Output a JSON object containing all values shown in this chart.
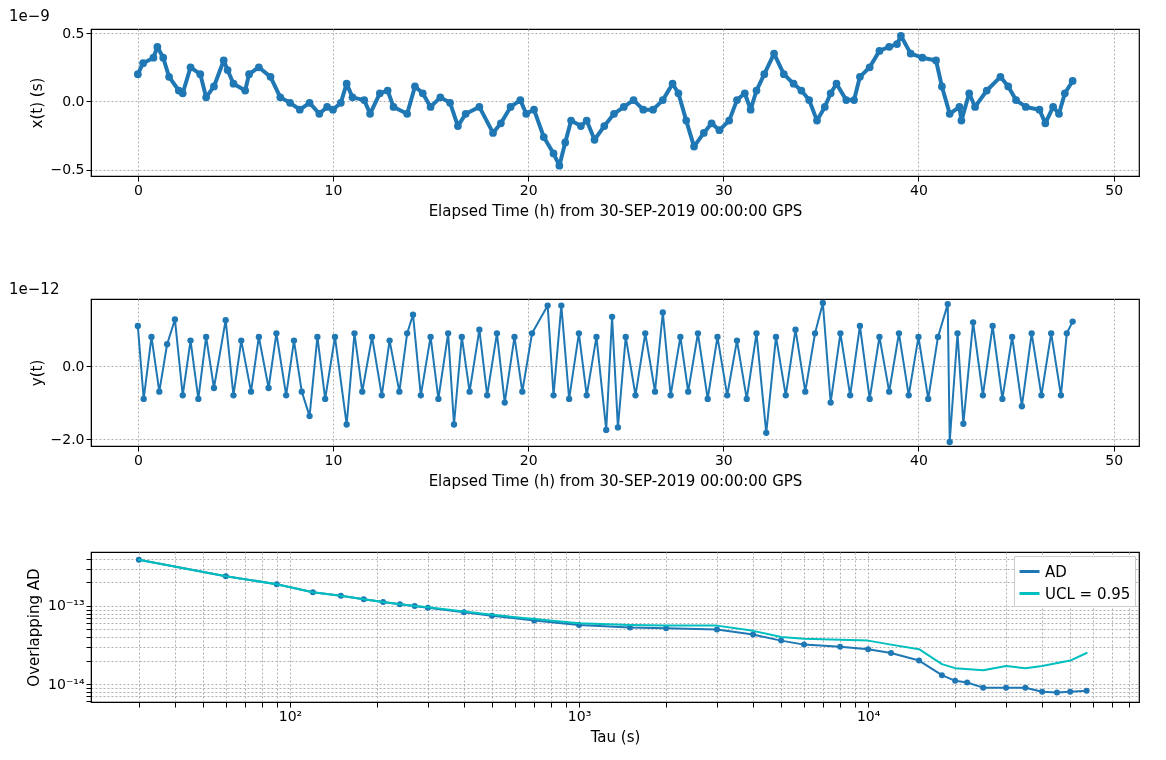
{
  "chart_data": [
    {
      "type": "line",
      "xlabel": "Elapsed Time (h) from 30-SEP-2019 00:00:00 GPS",
      "ylabel": "x(t) (s)",
      "annotations": [
        "1e−9"
      ],
      "xlim": [
        -2.4,
        51.3
      ],
      "ylim": [
        -0.545,
        0.53
      ],
      "xticks": [
        0,
        10,
        20,
        30,
        40,
        50
      ],
      "yticks": [
        {
          "value": -0.5,
          "label": "−0.5"
        },
        {
          "value": 0,
          "label": "0.0"
        },
        {
          "value": 0.5,
          "label": "0.5"
        }
      ],
      "grid": true,
      "marker": "circle",
      "series": [
        {
          "color": "#1f77b4",
          "x": [
            0,
            0.27,
            0.8,
            1.0,
            1.3,
            1.6,
            2.1,
            2.3,
            2.7,
            3.2,
            3.5,
            3.9,
            4.4,
            4.6,
            4.9,
            5.5,
            5.7,
            6.2,
            6.8,
            7.3,
            7.8,
            8.3,
            8.8,
            9.3,
            9.7,
            10.0,
            10.4,
            10.7,
            11.0,
            11.6,
            11.9,
            12.4,
            12.8,
            13.1,
            13.8,
            14.2,
            14.6,
            15.0,
            15.5,
            16.0,
            16.4,
            16.8,
            17.5,
            18.2,
            18.6,
            19.1,
            19.6,
            19.9,
            20.3,
            20.8,
            21.3,
            21.6,
            21.9,
            22.2,
            22.7,
            23.0,
            23.4,
            23.9,
            24.4,
            24.9,
            25.4,
            25.9,
            26.4,
            26.9,
            27.4,
            27.7,
            28.1,
            28.5,
            29.0,
            29.4,
            29.8,
            30.3,
            30.7,
            31.1,
            31.4,
            31.7,
            32.1,
            32.6,
            33.1,
            33.6,
            34.0,
            34.4,
            34.8,
            35.2,
            35.5,
            35.8,
            36.3,
            36.7,
            37.0,
            37.5,
            38.0,
            38.5,
            38.9,
            39.1,
            39.6,
            40.2,
            40.9,
            41.2,
            41.6,
            42.1,
            42.2,
            42.6,
            42.9,
            43.5,
            44.2,
            44.6,
            45.0,
            45.5,
            46.2,
            46.5,
            46.9,
            47.2,
            47.5,
            47.9
          ],
          "values": [
            0.2,
            0.28,
            0.32,
            0.4,
            0.32,
            0.18,
            0.08,
            0.06,
            0.25,
            0.2,
            0.03,
            0.11,
            0.3,
            0.23,
            0.13,
            0.08,
            0.2,
            0.25,
            0.18,
            0.03,
            -0.01,
            -0.06,
            -0.01,
            -0.09,
            -0.04,
            -0.06,
            -0.01,
            0.13,
            0.03,
            0.01,
            -0.09,
            0.06,
            0.08,
            -0.04,
            -0.09,
            0.11,
            0.06,
            -0.04,
            0.03,
            -0.01,
            -0.18,
            -0.09,
            -0.04,
            -0.23,
            -0.16,
            -0.04,
            0.01,
            -0.09,
            -0.06,
            -0.26,
            -0.38,
            -0.47,
            -0.3,
            -0.14,
            -0.18,
            -0.14,
            -0.28,
            -0.18,
            -0.09,
            -0.04,
            0.01,
            -0.06,
            -0.06,
            0.01,
            0.13,
            0.06,
            -0.14,
            -0.33,
            -0.23,
            -0.16,
            -0.21,
            -0.14,
            0.01,
            0.06,
            -0.06,
            0.08,
            0.2,
            0.35,
            0.2,
            0.13,
            0.08,
            0.01,
            -0.14,
            -0.04,
            0.06,
            0.13,
            0.01,
            0.01,
            0.18,
            0.25,
            0.37,
            0.4,
            0.42,
            0.48,
            0.35,
            0.32,
            0.3,
            0.11,
            -0.09,
            -0.04,
            -0.14,
            0.06,
            -0.04,
            0.08,
            0.18,
            0.11,
            0.01,
            -0.04,
            -0.06,
            -0.16,
            -0.04,
            -0.09,
            0.06,
            0.15
          ]
        }
      ]
    },
    {
      "type": "line",
      "xlabel": "Elapsed Time (h) from 30-SEP-2019 00:00:00 GPS",
      "ylabel": "y(t)",
      "annotations": [
        "1e−12"
      ],
      "xlim": [
        -2.4,
        51.3
      ],
      "ylim": [
        -2.19,
        1.84
      ],
      "xticks": [
        0,
        10,
        20,
        30,
        40,
        50
      ],
      "yticks": [
        {
          "value": -2,
          "label": "−2.0"
        },
        {
          "value": 0,
          "label": "0.0"
        }
      ],
      "grid": true,
      "marker": "circle",
      "series": [
        {
          "color": "#1f77b4",
          "x": [
            0,
            0.3,
            0.7,
            1.1,
            1.5,
            1.9,
            2.3,
            2.7,
            3.1,
            3.5,
            3.9,
            4.5,
            4.9,
            5.3,
            5.8,
            6.2,
            6.7,
            7.1,
            7.6,
            8.0,
            8.4,
            8.8,
            9.2,
            9.6,
            10.1,
            10.7,
            11.1,
            11.5,
            12.0,
            12.5,
            12.9,
            13.4,
            13.8,
            14.1,
            14.5,
            15.0,
            15.4,
            15.9,
            16.2,
            16.6,
            17.0,
            17.5,
            17.9,
            18.4,
            18.8,
            19.3,
            19.7,
            20.2,
            21.0,
            21.3,
            21.7,
            22.1,
            22.6,
            23.0,
            23.5,
            24.0,
            24.3,
            24.6,
            25.0,
            25.5,
            26.0,
            26.5,
            26.9,
            27.3,
            27.8,
            28.2,
            28.7,
            29.2,
            29.7,
            30.2,
            30.7,
            31.2,
            31.7,
            32.2,
            32.7,
            33.2,
            33.7,
            34.2,
            34.7,
            35.1,
            35.5,
            36.0,
            36.5,
            37.0,
            37.5,
            38.0,
            38.5,
            39.0,
            39.5,
            40.0,
            40.5,
            41.0,
            41.5,
            41.6,
            42.0,
            42.3,
            42.8,
            43.3,
            43.8,
            44.3,
            44.8,
            45.3,
            45.8,
            46.3,
            46.8,
            47.3,
            47.6,
            47.9
          ],
          "values": [
            1.1,
            -0.9,
            0.8,
            -0.7,
            0.6,
            1.28,
            -0.8,
            0.7,
            -0.9,
            0.8,
            -0.6,
            1.26,
            -0.8,
            0.7,
            -0.7,
            0.8,
            -0.6,
            0.9,
            -0.8,
            0.7,
            -0.7,
            -1.37,
            0.8,
            -0.9,
            0.8,
            -1.6,
            0.9,
            -0.7,
            0.8,
            -0.8,
            0.7,
            -0.7,
            0.9,
            1.41,
            -0.8,
            0.8,
            -0.9,
            0.9,
            -1.6,
            0.8,
            -0.7,
            1.0,
            -0.8,
            0.9,
            -1.0,
            0.8,
            -0.7,
            0.9,
            1.66,
            -0.8,
            1.66,
            -0.9,
            0.9,
            -0.8,
            0.8,
            -1.75,
            1.35,
            -1.68,
            0.8,
            -0.8,
            0.9,
            -0.7,
            1.47,
            -0.8,
            0.8,
            -0.7,
            0.9,
            -0.9,
            0.8,
            -0.8,
            0.7,
            -0.9,
            0.9,
            -1.83,
            0.8,
            -0.8,
            1.0,
            -0.7,
            0.9,
            1.73,
            -1.0,
            0.9,
            -0.8,
            1.1,
            -0.9,
            0.8,
            -0.7,
            0.9,
            -0.8,
            0.8,
            -0.9,
            0.8,
            1.7,
            -2.08,
            0.9,
            -1.58,
            1.2,
            -0.8,
            1.1,
            -0.9,
            0.8,
            -1.1,
            0.9,
            -0.8,
            0.9,
            -0.8,
            0.9,
            1.22
          ]
        }
      ]
    },
    {
      "type": "line",
      "xlabel": "Tau (s)",
      "ylabel": "Overlapping AD",
      "log": "xy",
      "xlim": [
        20.5,
        86500
      ],
      "ylim": [
        5.9e-15,
        4.9e-13
      ],
      "xticks": [
        {
          "value": 30,
          "label": null
        },
        {
          "value": 40,
          "label": null
        },
        {
          "value": 50,
          "label": null
        },
        {
          "value": 60,
          "label": null
        },
        {
          "value": 70,
          "label": null
        },
        {
          "value": 80,
          "label": null
        },
        {
          "value": 90,
          "label": null
        },
        {
          "value": 100,
          "label": "10²"
        },
        {
          "value": 200,
          "label": null
        },
        {
          "value": 300,
          "label": null
        },
        {
          "value": 400,
          "label": null
        },
        {
          "value": 500,
          "label": null
        },
        {
          "value": 600,
          "label": null
        },
        {
          "value": 700,
          "label": null
        },
        {
          "value": 800,
          "label": null
        },
        {
          "value": 900,
          "label": null
        },
        {
          "value": 1000,
          "label": "10³"
        },
        {
          "value": 2000,
          "label": null
        },
        {
          "value": 3000,
          "label": null
        },
        {
          "value": 4000,
          "label": null
        },
        {
          "value": 5000,
          "label": null
        },
        {
          "value": 6000,
          "label": null
        },
        {
          "value": 7000,
          "label": null
        },
        {
          "value": 8000,
          "label": null
        },
        {
          "value": 9000,
          "label": null
        },
        {
          "value": 10000,
          "label": "10⁴"
        },
        {
          "value": 20000,
          "label": null
        },
        {
          "value": 30000,
          "label": null
        },
        {
          "value": 40000,
          "label": null
        },
        {
          "value": 50000,
          "label": null
        },
        {
          "value": 60000,
          "label": null
        },
        {
          "value": 70000,
          "label": null
        },
        {
          "value": 80000,
          "label": null
        }
      ],
      "yticks": [
        {
          "value": 6e-15,
          "label": null
        },
        {
          "value": 7e-15,
          "label": null
        },
        {
          "value": 8e-15,
          "label": null
        },
        {
          "value": 9e-15,
          "label": null
        },
        {
          "value": 1e-14,
          "label": "10⁻¹⁴"
        },
        {
          "value": 2e-14,
          "label": null
        },
        {
          "value": 3e-14,
          "label": null
        },
        {
          "value": 4e-14,
          "label": null
        },
        {
          "value": 5e-14,
          "label": null
        },
        {
          "value": 6e-14,
          "label": null
        },
        {
          "value": 7e-14,
          "label": null
        },
        {
          "value": 8e-14,
          "label": null
        },
        {
          "value": 9e-14,
          "label": null
        },
        {
          "value": 1e-13,
          "label": "10⁻¹³"
        },
        {
          "value": 2e-13,
          "label": null
        },
        {
          "value": 3e-13,
          "label": null
        },
        {
          "value": 4e-13,
          "label": null
        }
      ],
      "grid": true,
      "legend": "top right",
      "series": [
        {
          "name": "AD",
          "color": "#1f77b4",
          "marker": "circle",
          "x": [
            30,
            60,
            90,
            120,
            150,
            180,
            210,
            240,
            270,
            300,
            400,
            500,
            700,
            1000,
            1500,
            2000,
            3000,
            4000,
            5000,
            6000,
            8000,
            10000,
            12000,
            15000,
            18000,
            20000,
            22000,
            25000,
            30000,
            35000,
            40000,
            45000,
            50000,
            57000
          ],
          "values": [
            3.9e-13,
            2.4e-13,
            1.9e-13,
            1.5e-13,
            1.35e-13,
            1.22e-13,
            1.12e-13,
            1.05e-13,
            1e-13,
            9.5e-14,
            8.3e-14,
            7.5e-14,
            6.5e-14,
            5.7e-14,
            5.3e-14,
            5.2e-14,
            5e-14,
            4.3e-14,
            3.6e-14,
            3.2e-14,
            3e-14,
            2.8e-14,
            2.5e-14,
            2e-14,
            1.3e-14,
            1.1e-14,
            1.05e-14,
            9e-15,
            9e-15,
            9e-15,
            8e-15,
            7.8e-15,
            8e-15,
            8.2e-15
          ]
        },
        {
          "name": "UCL = 0.95",
          "color": "#00bfbf",
          "marker": "none",
          "x": [
            30,
            60,
            90,
            120,
            150,
            180,
            210,
            240,
            270,
            300,
            400,
            500,
            700,
            1000,
            1500,
            2000,
            3000,
            4000,
            5000,
            6000,
            8000,
            10000,
            12000,
            15000,
            18000,
            20000,
            25000,
            30000,
            35000,
            40000,
            50000,
            57000
          ],
          "values": [
            3.9e-13,
            2.4e-13,
            1.9e-13,
            1.5e-13,
            1.35e-13,
            1.22e-13,
            1.12e-13,
            1.05e-13,
            1e-13,
            9.6e-14,
            8.5e-14,
            7.7e-14,
            6.8e-14,
            6e-14,
            5.7e-14,
            5.6e-14,
            5.6e-14,
            4.8e-14,
            4e-14,
            3.8e-14,
            3.7e-14,
            3.6e-14,
            3.2e-14,
            2.8e-14,
            1.8e-14,
            1.6e-14,
            1.5e-14,
            1.7e-14,
            1.6e-14,
            1.7e-14,
            2e-14,
            2.5e-14
          ]
        }
      ]
    }
  ]
}
